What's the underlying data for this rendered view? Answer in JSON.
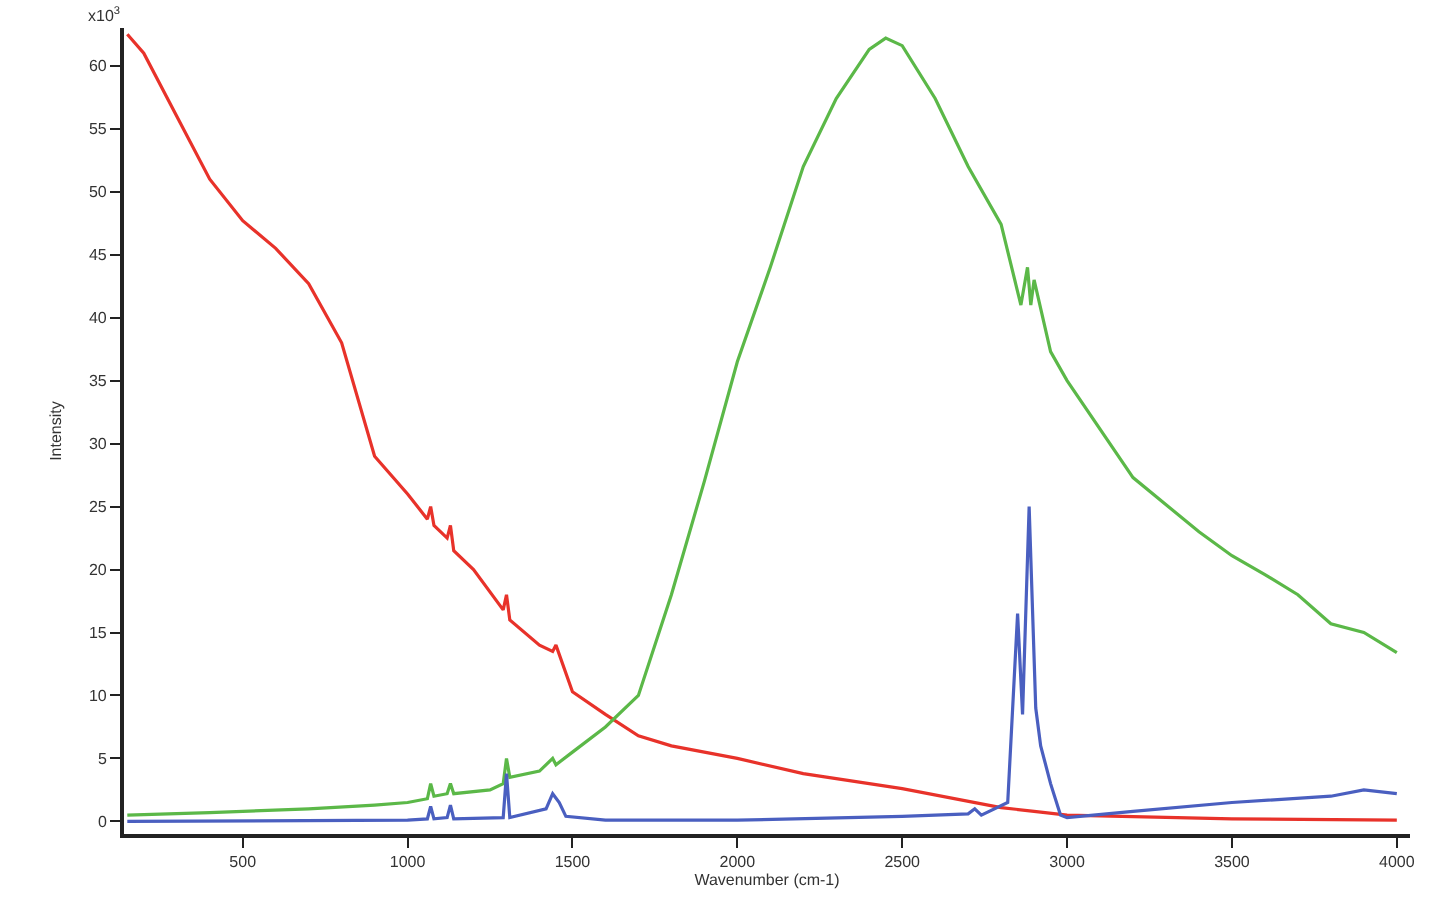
{
  "chart_data": {
    "type": "line",
    "xlabel": "Wavenumber (cm-1)",
    "ylabel": "Intensity",
    "annotations": [
      "x10$^{3}$"
    ],
    "xlim": [
      140,
      4040
    ],
    "xticks": [
      500,
      1000,
      1500,
      2000,
      2500,
      3000,
      3500,
      4000
    ],
    "ylim": [
      -1,
      63
    ],
    "yticks": [
      0,
      5,
      10,
      15,
      20,
      25,
      30,
      35,
      40,
      45,
      50,
      55,
      60
    ],
    "legend": false,
    "marker": "none",
    "line_style": "solid",
    "series": [
      {
        "color": "#e8322a",
        "x": [
          150,
          200,
          300,
          400,
          500,
          600,
          700,
          800,
          900,
          1000,
          1060,
          1070,
          1080,
          1120,
          1130,
          1140,
          1200,
          1290,
          1300,
          1310,
          1400,
          1440,
          1450,
          1500,
          1600,
          1700,
          1800,
          2000,
          2200,
          2500,
          2800,
          2900,
          3000,
          3500,
          4000
        ],
        "values": [
          62.5,
          61,
          56,
          51,
          47.7,
          45.5,
          42.7,
          38,
          29,
          26,
          24,
          25,
          23.5,
          22.5,
          23.5,
          21.5,
          20,
          16.8,
          18,
          16,
          14,
          13.5,
          14,
          10.3,
          8.5,
          6.8,
          6,
          5,
          3.8,
          2.6,
          1.1,
          0.8,
          0.5,
          0.2,
          0.1
        ]
      },
      {
        "color": "#5bb848",
        "x": [
          150,
          400,
          700,
          900,
          1000,
          1060,
          1070,
          1080,
          1120,
          1130,
          1140,
          1250,
          1290,
          1300,
          1310,
          1400,
          1440,
          1450,
          1500,
          1600,
          1700,
          1800,
          1900,
          2000,
          2100,
          2200,
          2300,
          2400,
          2450,
          2500,
          2600,
          2700,
          2800,
          2860,
          2880,
          2890,
          2900,
          2950,
          3000,
          3200,
          3400,
          3500,
          3600,
          3700,
          3800,
          3900,
          4000
        ],
        "values": [
          0.5,
          0.7,
          1,
          1.3,
          1.5,
          1.8,
          3,
          2,
          2.2,
          3,
          2.2,
          2.5,
          3,
          5,
          3.5,
          4,
          5,
          4.5,
          5.5,
          7.5,
          10,
          18,
          27,
          36.5,
          44,
          52,
          57.4,
          61.3,
          62.2,
          61.6,
          57.4,
          52,
          47.4,
          41,
          44,
          41,
          43,
          37.3,
          35,
          27.3,
          23,
          21.1,
          19.6,
          18,
          15.7,
          15,
          13.4
        ]
      },
      {
        "color": "#4a5fc0",
        "x": [
          150,
          1000,
          1060,
          1070,
          1080,
          1120,
          1130,
          1140,
          1290,
          1300,
          1310,
          1420,
          1440,
          1460,
          1480,
          1600,
          2000,
          2500,
          2700,
          2720,
          2740,
          2820,
          2850,
          2865,
          2885,
          2905,
          2920,
          2950,
          2980,
          3000,
          3200,
          3500,
          3800,
          3900,
          4000
        ],
        "values": [
          0,
          0.1,
          0.2,
          1.2,
          0.2,
          0.3,
          1.3,
          0.2,
          0.3,
          3.8,
          0.3,
          1,
          2.2,
          1.5,
          0.4,
          0.1,
          0.1,
          0.4,
          0.6,
          1,
          0.5,
          1.5,
          16.5,
          8.5,
          25,
          9,
          6,
          3,
          0.5,
          0.3,
          0.8,
          1.5,
          2,
          2.5,
          2.2
        ]
      }
    ]
  }
}
